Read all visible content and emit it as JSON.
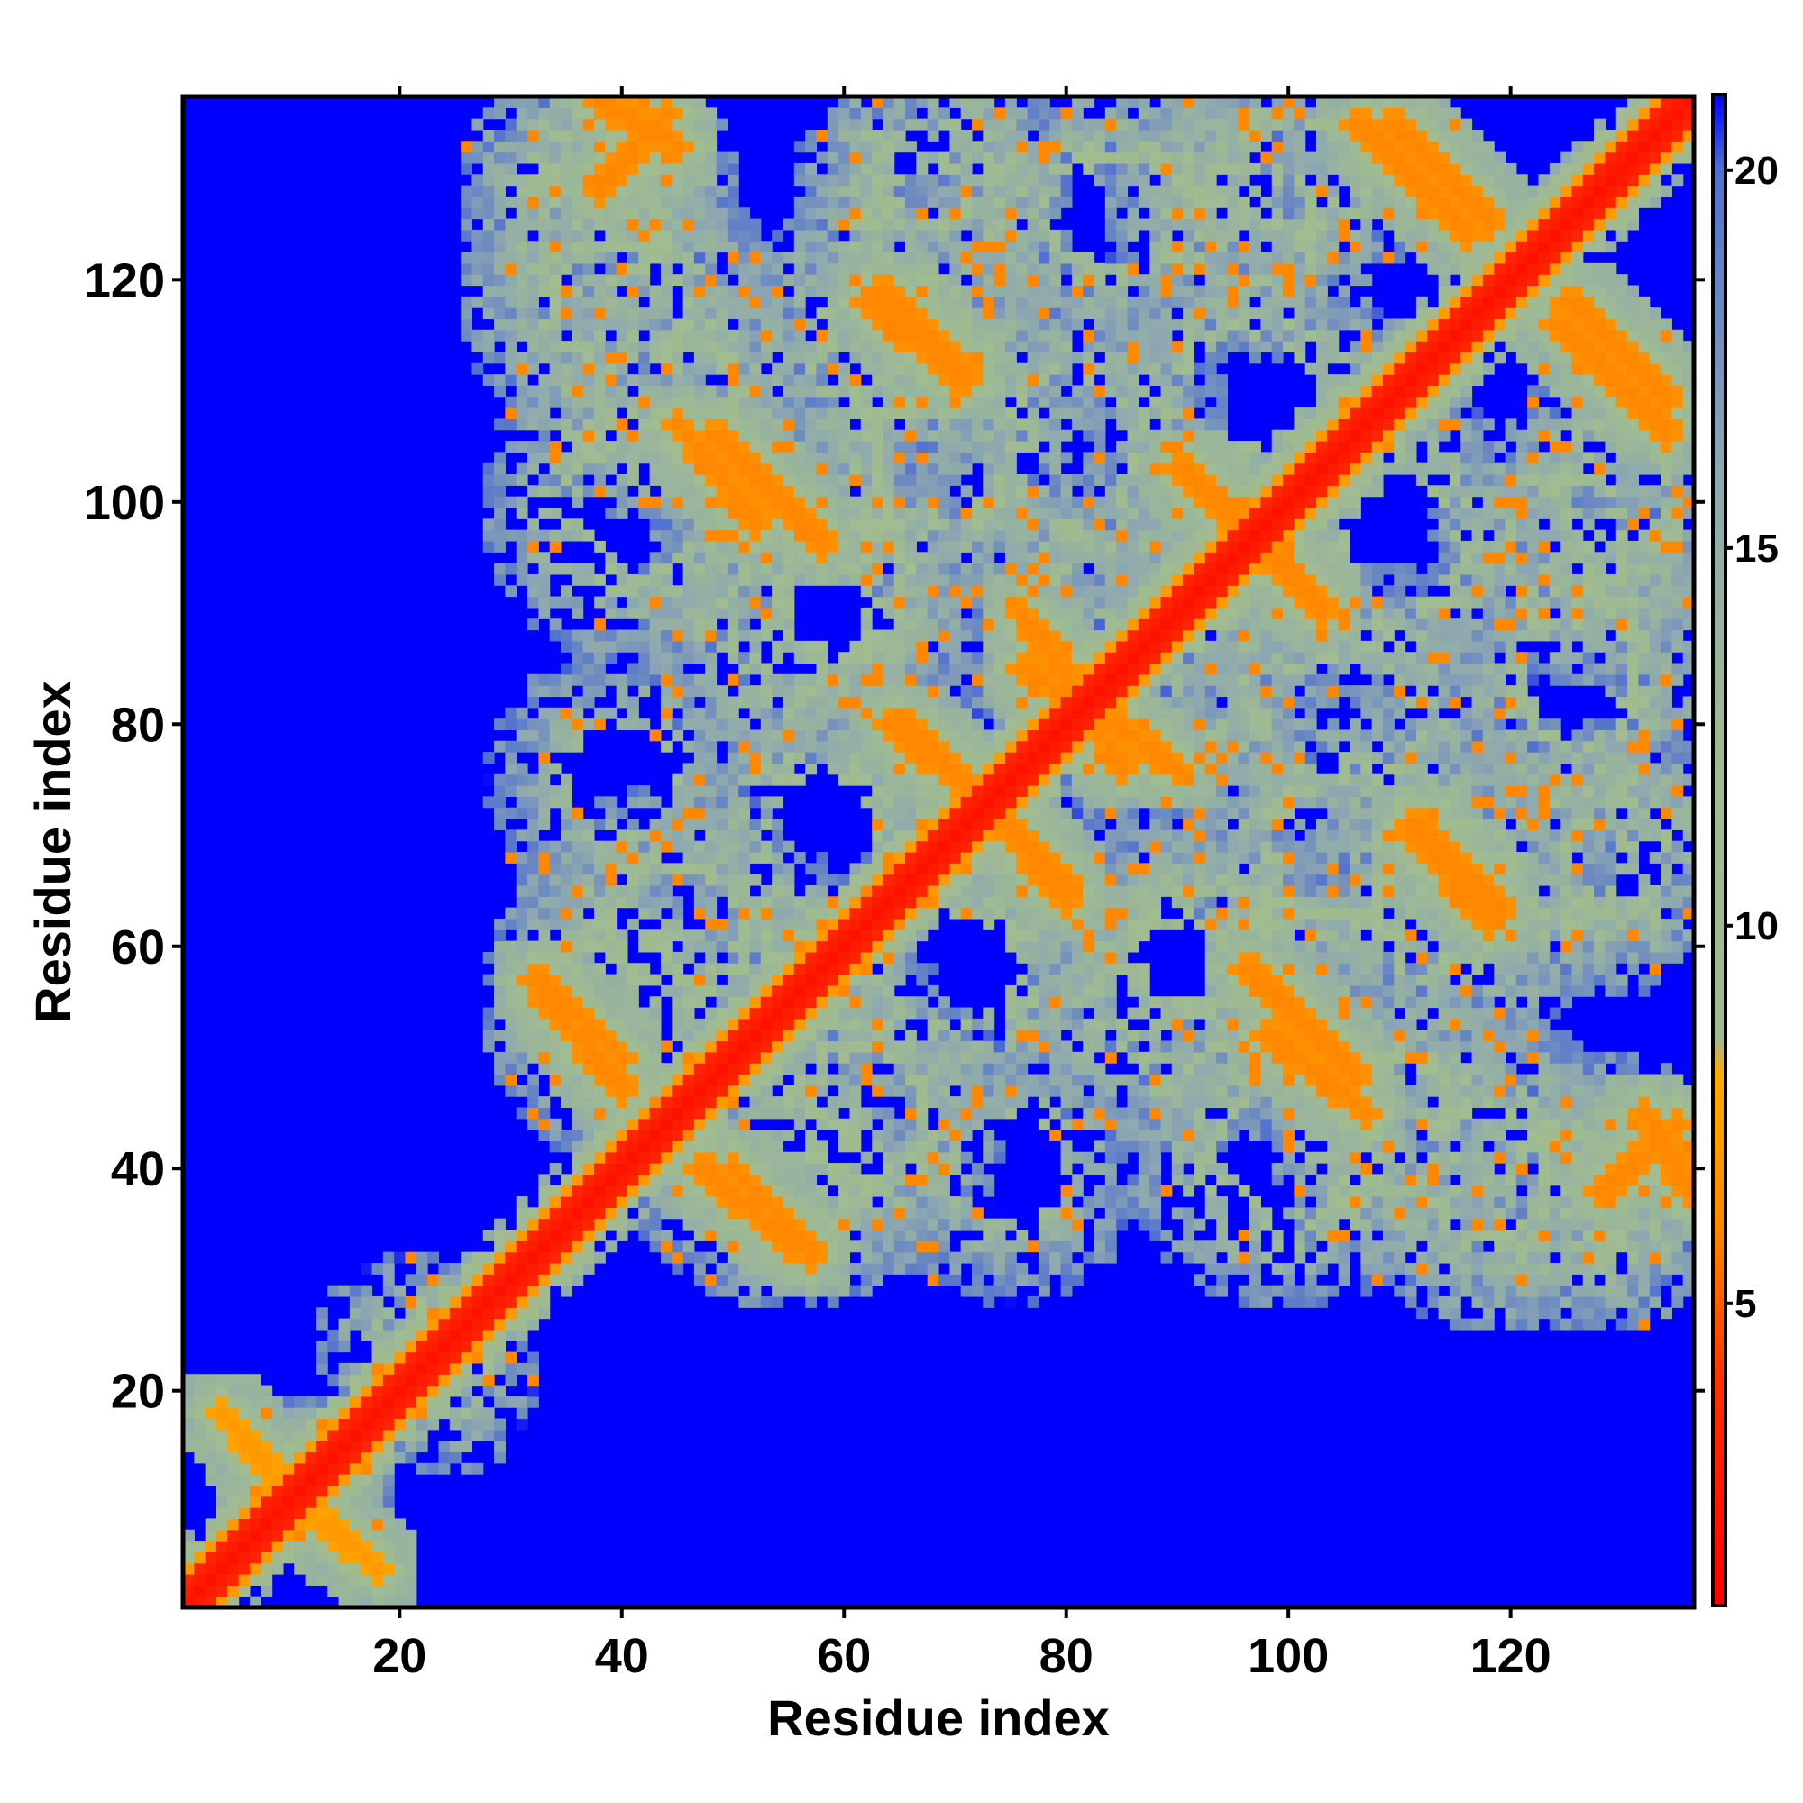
{
  "chart_data": {
    "type": "heatmap",
    "title": "",
    "xlabel": "Residue index",
    "ylabel": "Residue index",
    "n_residues": 136,
    "xlim": [
      1,
      136
    ],
    "ylim": [
      1,
      136
    ],
    "x_ticks": [
      20,
      40,
      60,
      80,
      100,
      120
    ],
    "y_ticks": [
      20,
      40,
      60,
      80,
      100,
      120
    ],
    "symmetric": true,
    "colorbar": {
      "ticks": [
        5,
        10,
        15,
        20
      ],
      "range": [
        1,
        21
      ],
      "stops": [
        {
          "value": 1,
          "color": "#ff0000"
        },
        {
          "value": 4,
          "color": "#ff3300"
        },
        {
          "value": 6,
          "color": "#ff8800"
        },
        {
          "value": 8,
          "color": "#ffaa00"
        },
        {
          "value": 8.5,
          "color": "#a4b890"
        },
        {
          "value": 12,
          "color": "#a0bc90"
        },
        {
          "value": 16,
          "color": "#8ea8b0"
        },
        {
          "value": 20,
          "color": "#5070d0"
        },
        {
          "value": 21,
          "color": "#0000ff"
        }
      ]
    },
    "background_value": 21,
    "diagonal_band": {
      "value": 2,
      "half_width": 2
    },
    "contact_segments": [
      {
        "start": [
          55,
          33
        ],
        "end": [
          47,
          40
        ],
        "value": 6
      },
      {
        "start": [
          32,
          57
        ],
        "end": [
          40,
          50
        ],
        "value": 6
      },
      {
        "start": [
          44,
          135
        ],
        "end": [
          38,
          128
        ],
        "value": 6
      },
      {
        "start": [
          63,
          119
        ],
        "end": [
          71,
          111
        ],
        "value": 6
      },
      {
        "start": [
          48,
          106
        ],
        "end": [
          58,
          96
        ],
        "value": 6
      },
      {
        "start": [
          65,
          80
        ],
        "end": [
          72,
          73
        ],
        "value": 6
      },
      {
        "start": [
          74,
          71
        ],
        "end": [
          80,
          64
        ],
        "value": 6
      },
      {
        "start": [
          76,
          85
        ],
        "end": [
          90,
          76
        ],
        "value": 6
      },
      {
        "start": [
          91,
          103
        ],
        "end": [
          103,
          90
        ],
        "value": 6
      },
      {
        "start": [
          98,
          52
        ],
        "end": [
          107,
          45
        ],
        "value": 6
      },
      {
        "start": [
          111,
          70
        ],
        "end": [
          118,
          62
        ],
        "value": 6
      },
      {
        "start": [
          106,
          134
        ],
        "end": [
          116,
          124
        ],
        "value": 6
      },
      {
        "start": [
          125,
          118
        ],
        "end": [
          134,
          109
        ],
        "value": 6
      },
      {
        "start": [
          132,
          45
        ],
        "end": [
          136,
          38
        ],
        "value": 6
      },
      {
        "start": [
          9,
          11
        ],
        "end": [
          18,
          4
        ],
        "value": 7
      }
    ],
    "blobs": [
      {
        "x": 38,
        "y": 125,
        "rx": 10,
        "ry": 10,
        "value": 12
      },
      {
        "x": 68,
        "y": 125,
        "rx": 10,
        "ry": 10,
        "value": 12
      },
      {
        "x": 96,
        "y": 125,
        "rx": 10,
        "ry": 10,
        "value": 12
      },
      {
        "x": 44,
        "y": 110,
        "rx": 12,
        "ry": 10,
        "value": 12
      },
      {
        "x": 69,
        "y": 105,
        "rx": 12,
        "ry": 12,
        "value": 12
      },
      {
        "x": 96,
        "y": 110,
        "rx": 12,
        "ry": 10,
        "value": 12
      },
      {
        "x": 130,
        "y": 100,
        "rx": 8,
        "ry": 14,
        "value": 12
      },
      {
        "x": 56,
        "y": 90,
        "rx": 12,
        "ry": 12,
        "value": 12
      },
      {
        "x": 85,
        "y": 90,
        "rx": 14,
        "ry": 12,
        "value": 13
      },
      {
        "x": 105,
        "y": 80,
        "rx": 14,
        "ry": 12,
        "value": 13
      },
      {
        "x": 126,
        "y": 85,
        "rx": 10,
        "ry": 14,
        "value": 12
      },
      {
        "x": 45,
        "y": 62,
        "rx": 12,
        "ry": 10,
        "value": 12
      },
      {
        "x": 70,
        "y": 58,
        "rx": 12,
        "ry": 10,
        "value": 12
      },
      {
        "x": 92,
        "y": 60,
        "rx": 12,
        "ry": 10,
        "value": 12
      },
      {
        "x": 115,
        "y": 65,
        "rx": 12,
        "ry": 12,
        "value": 12
      },
      {
        "x": 130,
        "y": 68,
        "rx": 8,
        "ry": 10,
        "value": 12
      },
      {
        "x": 55,
        "y": 40,
        "rx": 12,
        "ry": 10,
        "value": 12
      },
      {
        "x": 75,
        "y": 40,
        "rx": 10,
        "ry": 10,
        "value": 13
      },
      {
        "x": 100,
        "y": 42,
        "rx": 12,
        "ry": 12,
        "value": 12
      },
      {
        "x": 118,
        "y": 40,
        "rx": 10,
        "ry": 12,
        "value": 12
      },
      {
        "x": 130,
        "y": 38,
        "rx": 8,
        "ry": 10,
        "value": 12
      },
      {
        "x": 25,
        "y": 22,
        "rx": 6,
        "ry": 8,
        "value": 13
      },
      {
        "x": 12,
        "y": 12,
        "rx": 6,
        "ry": 6,
        "value": 12
      }
    ]
  }
}
